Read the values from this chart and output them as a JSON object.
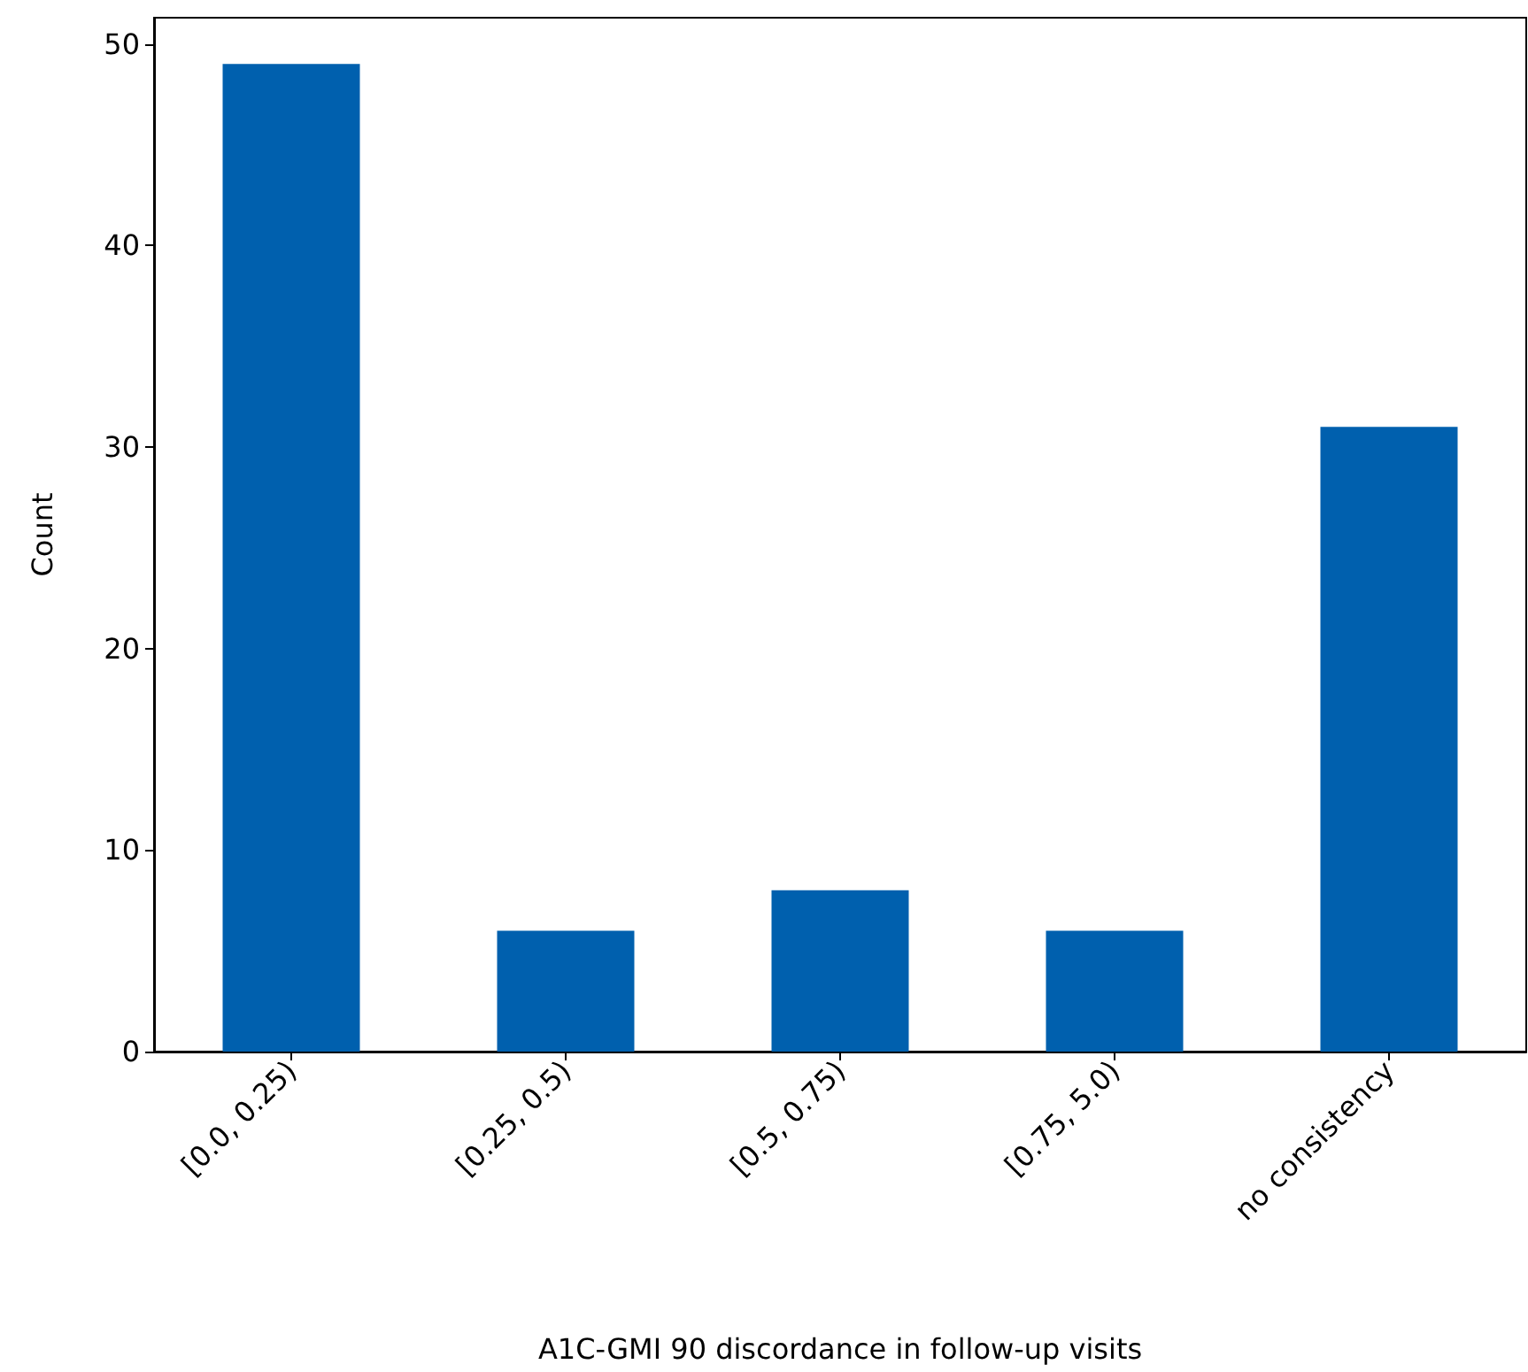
{
  "chart_data": {
    "type": "bar",
    "categories": [
      "[0.0, 0.25)",
      "[0.25, 0.5)",
      "[0.5, 0.75)",
      "[0.75, 5.0)",
      "no consistency"
    ],
    "values": [
      49,
      6,
      8,
      6,
      31
    ],
    "color": "#0060ae",
    "xlabel": "A1C-GMI 90 discordance in follow-up visits",
    "ylabel": "Count",
    "ylim": [
      0,
      51.3
    ],
    "yticks": [
      0,
      10,
      20,
      30,
      40,
      50
    ],
    "grid": false
  }
}
